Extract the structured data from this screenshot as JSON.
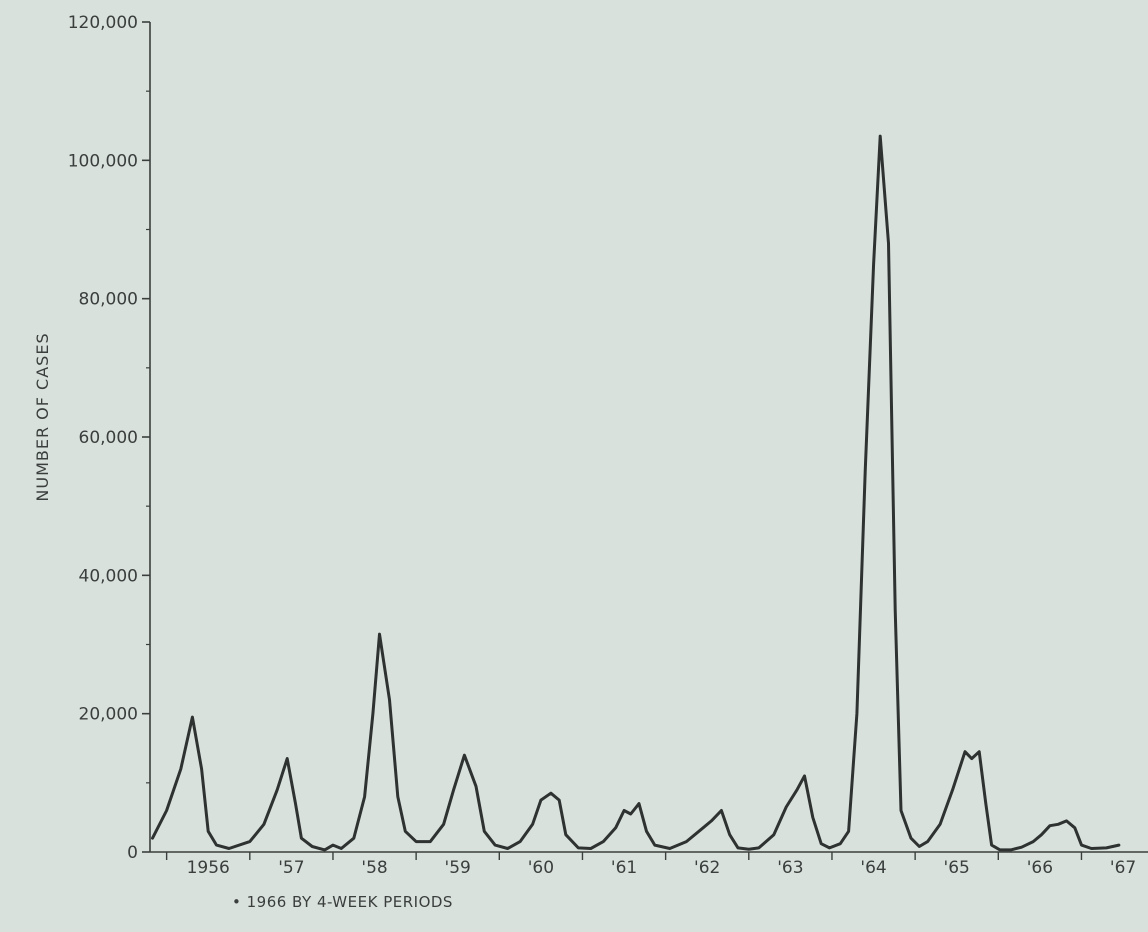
{
  "chart_data": {
    "type": "line",
    "ylabel": "NUMBER OF CASES",
    "ylim": [
      0,
      120000
    ],
    "y_ticks": [
      {
        "value": 0,
        "label": "0"
      },
      {
        "value": 20000,
        "label": "20,000"
      },
      {
        "value": 40000,
        "label": "40,000"
      },
      {
        "value": 60000,
        "label": "60,000"
      },
      {
        "value": 80000,
        "label": "80,000"
      },
      {
        "value": 100000,
        "label": "100,000"
      },
      {
        "value": 120000,
        "label": "120,000"
      }
    ],
    "xlim": [
      1955.8,
      1967.8
    ],
    "x_ticks": [
      {
        "value": 1956.5,
        "label": "1956"
      },
      {
        "value": 1957.5,
        "label": "'57"
      },
      {
        "value": 1958.5,
        "label": "'58"
      },
      {
        "value": 1959.5,
        "label": "'59"
      },
      {
        "value": 1960.5,
        "label": "'60"
      },
      {
        "value": 1961.5,
        "label": "'61"
      },
      {
        "value": 1962.5,
        "label": "'62"
      },
      {
        "value": 1963.5,
        "label": "'63"
      },
      {
        "value": 1964.5,
        "label": "'64"
      },
      {
        "value": 1965.5,
        "label": "'65"
      },
      {
        "value": 1966.5,
        "label": "'66"
      },
      {
        "value": 1967.5,
        "label": "'67"
      }
    ],
    "footnote": "• 1966 BY 4-WEEK PERIODS",
    "grid": false,
    "series": [
      {
        "color": "#2e3331",
        "points": [
          [
            1955.83,
            2000
          ],
          [
            1956.0,
            6000
          ],
          [
            1956.17,
            12000
          ],
          [
            1956.31,
            19500
          ],
          [
            1956.42,
            12000
          ],
          [
            1956.5,
            3000
          ],
          [
            1956.6,
            1000
          ],
          [
            1956.75,
            500
          ],
          [
            1957.0,
            1500
          ],
          [
            1957.17,
            4000
          ],
          [
            1957.33,
            9000
          ],
          [
            1957.45,
            13500
          ],
          [
            1957.55,
            7000
          ],
          [
            1957.62,
            2000
          ],
          [
            1957.75,
            800
          ],
          [
            1957.9,
            300
          ],
          [
            1958.0,
            1000
          ],
          [
            1958.1,
            500
          ],
          [
            1958.25,
            2000
          ],
          [
            1958.38,
            8000
          ],
          [
            1958.48,
            20000
          ],
          [
            1958.56,
            31500
          ],
          [
            1958.68,
            22000
          ],
          [
            1958.78,
            8000
          ],
          [
            1958.87,
            3000
          ],
          [
            1959.0,
            1500
          ],
          [
            1959.17,
            1500
          ],
          [
            1959.33,
            4000
          ],
          [
            1959.45,
            9000
          ],
          [
            1959.58,
            14000
          ],
          [
            1959.72,
            9500
          ],
          [
            1959.82,
            3000
          ],
          [
            1959.95,
            1000
          ],
          [
            1960.1,
            500
          ],
          [
            1960.25,
            1500
          ],
          [
            1960.4,
            4000
          ],
          [
            1960.5,
            7500
          ],
          [
            1960.62,
            8500
          ],
          [
            1960.72,
            7500
          ],
          [
            1960.8,
            2500
          ],
          [
            1960.95,
            600
          ],
          [
            1961.1,
            500
          ],
          [
            1961.25,
            1500
          ],
          [
            1961.4,
            3500
          ],
          [
            1961.5,
            6000
          ],
          [
            1961.58,
            5500
          ],
          [
            1961.68,
            7000
          ],
          [
            1961.77,
            3000
          ],
          [
            1961.87,
            1000
          ],
          [
            1962.05,
            500
          ],
          [
            1962.25,
            1500
          ],
          [
            1962.45,
            3500
          ],
          [
            1962.55,
            4500
          ],
          [
            1962.67,
            6000
          ],
          [
            1962.77,
            2500
          ],
          [
            1962.87,
            600
          ],
          [
            1963.0,
            400
          ],
          [
            1963.12,
            600
          ],
          [
            1963.3,
            2500
          ],
          [
            1963.45,
            6500
          ],
          [
            1963.58,
            9000
          ],
          [
            1963.67,
            11000
          ],
          [
            1963.77,
            5000
          ],
          [
            1963.87,
            1200
          ],
          [
            1963.97,
            600
          ],
          [
            1964.1,
            1200
          ],
          [
            1964.2,
            3000
          ],
          [
            1964.3,
            20000
          ],
          [
            1964.4,
            55000
          ],
          [
            1964.5,
            85000
          ],
          [
            1964.58,
            103500
          ],
          [
            1964.68,
            88000
          ],
          [
            1964.76,
            35000
          ],
          [
            1964.83,
            6000
          ],
          [
            1964.95,
            2000
          ],
          [
            1965.05,
            800
          ],
          [
            1965.15,
            1500
          ],
          [
            1965.3,
            4000
          ],
          [
            1965.45,
            9000
          ],
          [
            1965.6,
            14500
          ],
          [
            1965.68,
            13500
          ],
          [
            1965.77,
            14500
          ],
          [
            1965.85,
            7000
          ],
          [
            1965.92,
            1000
          ],
          [
            1966.02,
            300
          ],
          [
            1966.15,
            300
          ],
          [
            1966.28,
            700
          ],
          [
            1966.42,
            1500
          ],
          [
            1966.52,
            2500
          ],
          [
            1966.62,
            3800
          ],
          [
            1966.72,
            4000
          ],
          [
            1966.82,
            4500
          ],
          [
            1966.92,
            3500
          ],
          [
            1967.0,
            1000
          ],
          [
            1967.12,
            500
          ],
          [
            1967.3,
            600
          ],
          [
            1967.45,
            1000
          ]
        ]
      }
    ]
  }
}
